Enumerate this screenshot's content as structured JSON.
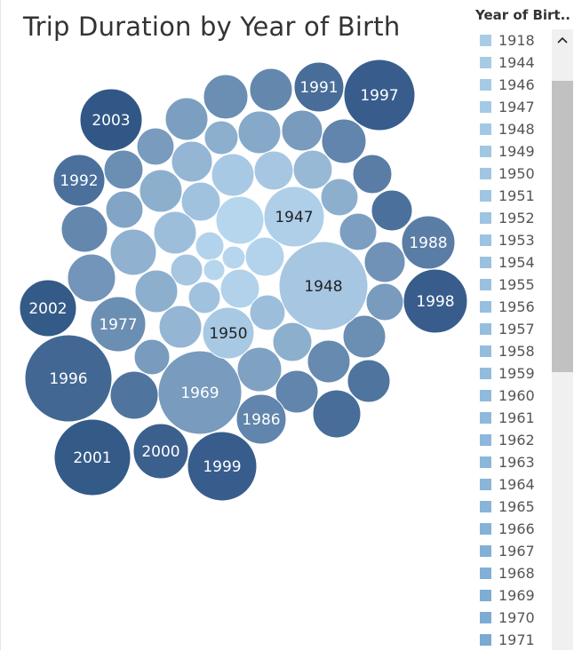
{
  "chart_data": {
    "type": "bubble",
    "title": "Trip Duration by Year of Birth",
    "measure": "Trip Duration",
    "dimension": "Year of Birth",
    "labeled_bubbles": [
      {
        "year": "1948",
        "relative_size": 1.0
      },
      {
        "year": "1996",
        "relative_size": 0.98
      },
      {
        "year": "1969",
        "relative_size": 0.92
      },
      {
        "year": "2001",
        "relative_size": 0.86
      },
      {
        "year": "1997",
        "relative_size": 0.8
      },
      {
        "year": "1999",
        "relative_size": 0.79
      },
      {
        "year": "1947",
        "relative_size": 0.67
      },
      {
        "year": "2003",
        "relative_size": 0.71
      },
      {
        "year": "1998",
        "relative_size": 0.72
      },
      {
        "year": "2000",
        "relative_size": 0.63
      },
      {
        "year": "2002",
        "relative_size": 0.64
      },
      {
        "year": "1977",
        "relative_size": 0.62
      },
      {
        "year": "1950",
        "relative_size": 0.58
      },
      {
        "year": "1986",
        "relative_size": 0.56
      },
      {
        "year": "1988",
        "relative_size": 0.6
      },
      {
        "year": "1992",
        "relative_size": 0.6
      },
      {
        "year": "1991",
        "relative_size": 0.57
      }
    ]
  },
  "legend": {
    "title": "Year of Birt..",
    "items": [
      "1918",
      "1944",
      "1946",
      "1947",
      "1948",
      "1949",
      "1950",
      "1951",
      "1952",
      "1953",
      "1954",
      "1955",
      "1956",
      "1957",
      "1958",
      "1959",
      "1960",
      "1961",
      "1962",
      "1963",
      "1964",
      "1965",
      "1966",
      "1967",
      "1968",
      "1969",
      "1970",
      "1971"
    ],
    "colors": [
      "#a9cce6",
      "#a7cbe5",
      "#a6cae5",
      "#a4c9e4",
      "#a3c8e4",
      "#a1c7e3",
      "#a0c6e3",
      "#9fc5e2",
      "#9dc4e1",
      "#9cc3e1",
      "#9ac2e0",
      "#99c1df",
      "#97bfdf",
      "#95bede",
      "#94bddd",
      "#92bcdd",
      "#90badc",
      "#8eb9db",
      "#8db8db",
      "#8bb7da",
      "#89b5d9",
      "#87b4d8",
      "#85b2d7",
      "#83b1d6",
      "#81afd5",
      "#7fadd4",
      "#7dacd3",
      "#7baad2"
    ]
  },
  "scrollbar": {
    "up_icon": "chevron-up-icon",
    "up_glyph": "⌃"
  },
  "colors": {
    "light": "#b6d6ee",
    "dark": "#2d5383",
    "label_dark": "#222222",
    "label_light": "#ffffff"
  }
}
